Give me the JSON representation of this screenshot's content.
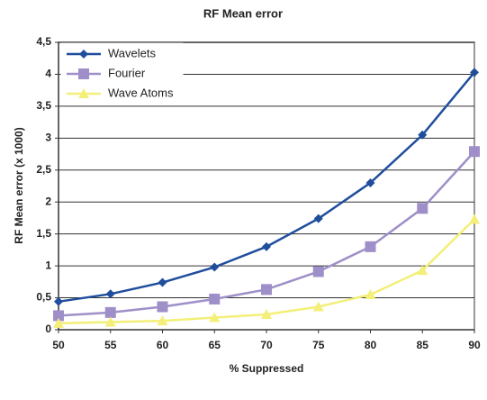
{
  "chart_data": {
    "type": "line",
    "title": "RF Mean error",
    "xlabel": "% Suppressed",
    "ylabel": "RF Mean error (x 1000)",
    "x": [
      50,
      55,
      60,
      65,
      70,
      75,
      80,
      85,
      90
    ],
    "xlim": [
      50,
      90
    ],
    "xticks": [
      50,
      55,
      60,
      65,
      70,
      75,
      80,
      85,
      90
    ],
    "ylim": [
      0,
      4.5
    ],
    "yticks": [
      0,
      {
        "value": 0.5,
        "label": "0,5"
      },
      1,
      {
        "value": 1.5,
        "label": "1,5"
      },
      2,
      {
        "value": 2.5,
        "label": "2,5"
      },
      3,
      {
        "value": 3.5,
        "label": "3,5"
      },
      4,
      {
        "value": 4.5,
        "label": "4,5"
      }
    ],
    "grid": true,
    "legend": "upper left",
    "series": [
      {
        "name": "Wavelets",
        "color": "#1f4e9c",
        "marker": "diamond",
        "values": [
          0.44,
          0.56,
          0.74,
          0.98,
          1.3,
          1.74,
          2.3,
          3.05,
          4.03
        ]
      },
      {
        "name": "Fourier",
        "color": "#9f8fc8",
        "marker": "square",
        "values": [
          0.22,
          0.27,
          0.36,
          0.48,
          0.63,
          0.91,
          1.3,
          1.9,
          2.79
        ]
      },
      {
        "name": "Wave Atoms",
        "color": "#f3ef78",
        "marker": "triangle",
        "values": [
          0.1,
          0.12,
          0.14,
          0.19,
          0.24,
          0.36,
          0.55,
          0.93,
          1.73
        ]
      }
    ]
  }
}
